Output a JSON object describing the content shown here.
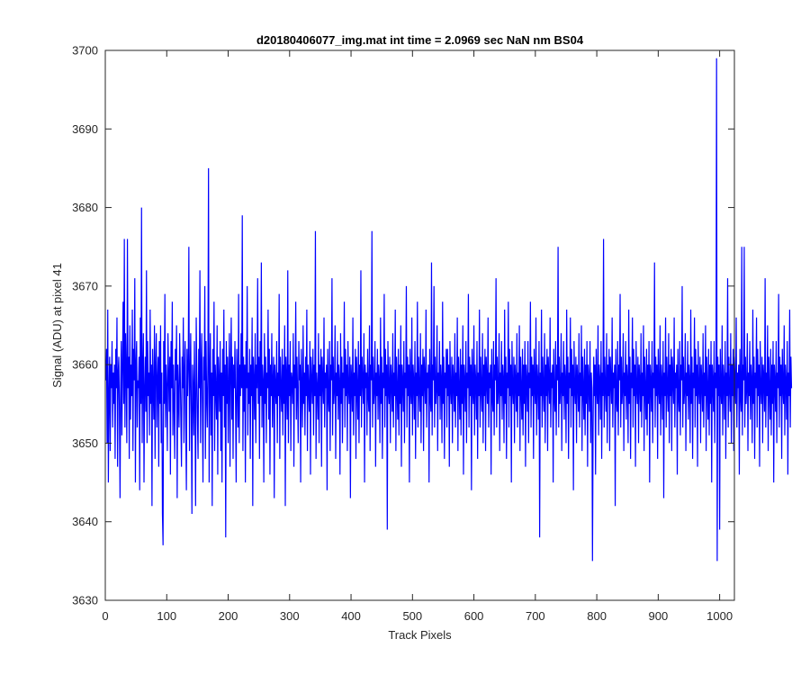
{
  "chart_data": {
    "type": "line",
    "title": "d20180406077_img.mat int time = 2.0969 sec  NaN nm BS04",
    "xlabel": "Track Pixels",
    "ylabel": "Signal (ADU) at pixel 41",
    "xlim": [
      0,
      1024
    ],
    "ylim": [
      3630,
      3700
    ],
    "xticks": [
      0,
      100,
      200,
      300,
      400,
      500,
      600,
      700,
      800,
      900,
      1000
    ],
    "yticks": [
      3630,
      3640,
      3650,
      3660,
      3670,
      3680,
      3690,
      3700
    ],
    "grid": false,
    "legend": "none",
    "series": [
      {
        "color": "#0000ff",
        "x_start": 1,
        "x_step": 1,
        "y": [
          3658,
          3662,
          3650,
          3667,
          3645,
          3656,
          3661,
          3649,
          3660,
          3657,
          3663,
          3652,
          3659,
          3655,
          3660,
          3648,
          3662,
          3657,
          3666,
          3647,
          3659,
          3661,
          3654,
          3643,
          3657,
          3663,
          3651,
          3660,
          3668,
          3655,
          3676,
          3652,
          3664,
          3659,
          3650,
          3676,
          3657,
          3661,
          3648,
          3665,
          3653,
          3660,
          3656,
          3667,
          3649,
          3662,
          3658,
          3671,
          3645,
          3660,
          3663,
          3652,
          3658,
          3657,
          3661,
          3644,
          3666,
          3655,
          3680,
          3650,
          3659,
          3664,
          3645,
          3657,
          3661,
          3654,
          3672,
          3650,
          3663,
          3656,
          3659,
          3651,
          3667,
          3655,
          3660,
          3642,
          3662,
          3657,
          3653,
          3665,
          3648,
          3660,
          3664,
          3652,
          3658,
          3661,
          3647,
          3663,
          3655,
          3665,
          3650,
          3659,
          3641,
          3637,
          3663,
          3655,
          3669,
          3652,
          3660,
          3657,
          3649,
          3664,
          3659,
          3654,
          3661,
          3646,
          3663,
          3657,
          3668,
          3651,
          3660,
          3655,
          3648,
          3662,
          3658,
          3665,
          3643,
          3660,
          3656,
          3652,
          3664,
          3659,
          3653,
          3647,
          3661,
          3657,
          3666,
          3650,
          3659,
          3663,
          3652,
          3644,
          3662,
          3656,
          3660,
          3675,
          3649,
          3658,
          3664,
          3654,
          3641,
          3660,
          3657,
          3651,
          3663,
          3655,
          3642,
          3666,
          3659,
          3653,
          3648,
          3662,
          3657,
          3672,
          3650,
          3659,
          3664,
          3655,
          3645,
          3661,
          3658,
          3670,
          3648,
          3663,
          3656,
          3652,
          3660,
          3685,
          3645,
          3658,
          3664,
          3651,
          3659,
          3642,
          3662,
          3656,
          3668,
          3649,
          3660,
          3657,
          3653,
          3665,
          3646,
          3661,
          3658,
          3654,
          3663,
          3649,
          3659,
          3645,
          3662,
          3656,
          3667,
          3652,
          3660,
          3638,
          3663,
          3655,
          3661,
          3650,
          3658,
          3664,
          3647,
          3659,
          3666,
          3653,
          3661,
          3648,
          3660,
          3657,
          3663,
          3655,
          3645,
          3662,
          3658,
          3652,
          3669,
          3650,
          3660,
          3656,
          3664,
          3657,
          3679,
          3649,
          3661,
          3654,
          3660,
          3645,
          3663,
          3657,
          3670,
          3651,
          3659,
          3655,
          3662,
          3648,
          3660,
          3656,
          3666,
          3642,
          3661,
          3658,
          3653,
          3664,
          3650,
          3660,
          3657,
          3671,
          3655,
          3661,
          3648,
          3663,
          3656,
          3673,
          3652,
          3660,
          3658,
          3645,
          3664,
          3655,
          3661,
          3650,
          3659,
          3657,
          3667,
          3653,
          3662,
          3646,
          3660,
          3656,
          3664,
          3652,
          3658,
          3661,
          3643,
          3660,
          3657,
          3655,
          3663,
          3650,
          3659,
          3656,
          3669,
          3648,
          3661,
          3657,
          3654,
          3662,
          3651,
          3660,
          3655,
          3665,
          3642,
          3661,
          3658,
          3653,
          3672,
          3650,
          3660,
          3656,
          3663,
          3649,
          3659,
          3658,
          3655,
          3664,
          3647,
          3660,
          3657,
          3668,
          3653,
          3661,
          3656,
          3650,
          3663,
          3658,
          3660,
          3645,
          3662,
          3657,
          3652,
          3665,
          3655,
          3659,
          3651,
          3661,
          3656,
          3667,
          3649,
          3660,
          3657,
          3654,
          3663,
          3646,
          3661,
          3658,
          3655,
          3662,
          3651,
          3660,
          3656,
          3677,
          3648,
          3659,
          3657,
          3653,
          3664,
          3650,
          3660,
          3656,
          3662,
          3647,
          3661,
          3658,
          3655,
          3666,
          3652,
          3659,
          3657,
          3660,
          3644,
          3662,
          3656,
          3654,
          3663,
          3649,
          3660,
          3658,
          3671,
          3651,
          3661,
          3655,
          3657,
          3665,
          3648,
          3659,
          3656,
          3663,
          3653,
          3660,
          3658,
          3646,
          3664,
          3655,
          3661,
          3650,
          3659,
          3657,
          3668,
          3652,
          3662,
          3656,
          3660,
          3649,
          3663,
          3657,
          3655,
          3661,
          3643,
          3660,
          3658,
          3654,
          3666,
          3651,
          3659,
          3656,
          3662,
          3648,
          3661,
          3657,
          3653,
          3663,
          3650,
          3660,
          3656,
          3672,
          3652,
          3661,
          3658,
          3655,
          3664,
          3645,
          3660,
          3657,
          3659,
          3651,
          3662,
          3656,
          3654,
          3665,
          3649,
          3660,
          3658,
          3677,
          3652,
          3661,
          3655,
          3657,
          3663,
          3647,
          3659,
          3656,
          3662,
          3653,
          3660,
          3658,
          3650,
          3666,
          3655,
          3661,
          3648,
          3659,
          3657,
          3669,
          3652,
          3662,
          3656,
          3660,
          3639,
          3663,
          3657,
          3655,
          3661,
          3650,
          3660,
          3658,
          3654,
          3664,
          3652,
          3659,
          3656,
          3667,
          3649,
          3661,
          3657,
          3653,
          3662,
          3651,
          3660,
          3655,
          3665,
          3647,
          3660,
          3658,
          3654,
          3663,
          3650,
          3659,
          3657,
          3670,
          3652,
          3661,
          3656,
          3660,
          3645,
          3662,
          3657,
          3655,
          3666,
          3651,
          3660,
          3658,
          3653,
          3663,
          3648,
          3659,
          3656,
          3668,
          3652,
          3661,
          3657,
          3654,
          3664,
          3650,
          3660,
          3656,
          3662,
          3649,
          3661,
          3658,
          3655,
          3667,
          3652,
          3659,
          3657,
          3660,
          3645,
          3662,
          3656,
          3654,
          3673,
          3651,
          3660,
          3658,
          3670,
          3652,
          3661,
          3655,
          3657,
          3665,
          3649,
          3659,
          3656,
          3663,
          3653,
          3660,
          3658,
          3650,
          3668,
          3655,
          3661,
          3648,
          3659,
          3657,
          3662,
          3652,
          3662,
          3656,
          3660,
          3647,
          3663,
          3657,
          3655,
          3661,
          3650,
          3660,
          3658,
          3654,
          3664,
          3652,
          3659,
          3656,
          3666,
          3649,
          3661,
          3657,
          3653,
          3662,
          3651,
          3660,
          3655,
          3665,
          3646,
          3660,
          3658,
          3654,
          3663,
          3650,
          3659,
          3657,
          3669,
          3652,
          3661,
          3656,
          3660,
          3644,
          3662,
          3657,
          3655,
          3665,
          3651,
          3660,
          3658,
          3653,
          3663,
          3648,
          3659,
          3656,
          3667,
          3652,
          3661,
          3657,
          3654,
          3664,
          3650,
          3660,
          3656,
          3662,
          3649,
          3661,
          3658,
          3655,
          3666,
          3652,
          3659,
          3657,
          3660,
          3646,
          3662,
          3656,
          3654,
          3663,
          3651,
          3660,
          3658,
          3671,
          3652,
          3661,
          3655,
          3657,
          3664,
          3649,
          3659,
          3656,
          3663,
          3653,
          3660,
          3658,
          3650,
          3667,
          3655,
          3661,
          3648,
          3659,
          3657,
          3668,
          3652,
          3662,
          3656,
          3660,
          3645,
          3663,
          3657,
          3655,
          3661,
          3650,
          3660,
          3658,
          3654,
          3664,
          3652,
          3659,
          3656,
          3665,
          3649,
          3661,
          3657,
          3653,
          3662,
          3651,
          3660,
          3655,
          3663,
          3647,
          3660,
          3658,
          3654,
          3663,
          3650,
          3659,
          3657,
          3668,
          3652,
          3661,
          3656,
          3660,
          3648,
          3662,
          3657,
          3655,
          3666,
          3651,
          3660,
          3658,
          3653,
          3663,
          3638,
          3659,
          3656,
          3667,
          3652,
          3661,
          3657,
          3654,
          3664,
          3650,
          3660,
          3656,
          3662,
          3649,
          3661,
          3658,
          3655,
          3666,
          3652,
          3659,
          3657,
          3660,
          3645,
          3662,
          3656,
          3654,
          3663,
          3651,
          3660,
          3658,
          3675,
          3652,
          3661,
          3655,
          3657,
          3664,
          3649,
          3659,
          3656,
          3663,
          3653,
          3660,
          3658,
          3650,
          3667,
          3655,
          3661,
          3648,
          3659,
          3657,
          3666,
          3652,
          3662,
          3656,
          3660,
          3644,
          3663,
          3657,
          3655,
          3661,
          3650,
          3660,
          3658,
          3654,
          3664,
          3652,
          3659,
          3656,
          3665,
          3649,
          3661,
          3657,
          3653,
          3662,
          3651,
          3660,
          3655,
          3663,
          3647,
          3660,
          3658,
          3654,
          3663,
          3650,
          3659,
          3657,
          3635,
          3652,
          3661,
          3656,
          3660,
          3646,
          3662,
          3657,
          3655,
          3665,
          3651,
          3660,
          3658,
          3653,
          3663,
          3648,
          3659,
          3656,
          3676,
          3652,
          3661,
          3657,
          3654,
          3664,
          3650,
          3660,
          3656,
          3662,
          3649,
          3661,
          3658,
          3655,
          3666,
          3652,
          3659,
          3657,
          3660,
          3642,
          3662,
          3656,
          3654,
          3663,
          3651,
          3660,
          3658,
          3669,
          3652,
          3661,
          3655,
          3657,
          3664,
          3649,
          3659,
          3656,
          3663,
          3653,
          3660,
          3658,
          3650,
          3667,
          3655,
          3661,
          3648,
          3659,
          3657,
          3666,
          3652,
          3662,
          3656,
          3660,
          3647,
          3663,
          3657,
          3655,
          3661,
          3650,
          3660,
          3658,
          3654,
          3664,
          3652,
          3659,
          3656,
          3665,
          3649,
          3661,
          3657,
          3653,
          3662,
          3651,
          3660,
          3655,
          3663,
          3645,
          3660,
          3658,
          3654,
          3663,
          3650,
          3659,
          3657,
          3673,
          3652,
          3661,
          3656,
          3660,
          3648,
          3662,
          3657,
          3655,
          3665,
          3651,
          3660,
          3658,
          3653,
          3663,
          3643,
          3659,
          3656,
          3666,
          3652,
          3661,
          3657,
          3654,
          3664,
          3650,
          3660,
          3656,
          3662,
          3649,
          3661,
          3658,
          3655,
          3666,
          3652,
          3659,
          3657,
          3660,
          3646,
          3662,
          3656,
          3654,
          3663,
          3651,
          3660,
          3658,
          3670,
          3652,
          3661,
          3655,
          3657,
          3664,
          3649,
          3659,
          3656,
          3663,
          3653,
          3660,
          3658,
          3650,
          3667,
          3655,
          3661,
          3648,
          3659,
          3657,
          3666,
          3652,
          3662,
          3656,
          3660,
          3647,
          3663,
          3657,
          3655,
          3661,
          3650,
          3660,
          3658,
          3654,
          3664,
          3652,
          3659,
          3656,
          3665,
          3649,
          3661,
          3657,
          3653,
          3662,
          3651,
          3660,
          3655,
          3663,
          3645,
          3660,
          3658,
          3654,
          3663,
          3650,
          3659,
          3657,
          3699,
          3635,
          3661,
          3656,
          3660,
          3639,
          3662,
          3657,
          3655,
          3665,
          3651,
          3660,
          3658,
          3653,
          3663,
          3648,
          3659,
          3656,
          3671,
          3652,
          3661,
          3657,
          3654,
          3664,
          3650,
          3660,
          3656,
          3662,
          3649,
          3661,
          3658,
          3655,
          3666,
          3652,
          3659,
          3657,
          3660,
          3646,
          3662,
          3656,
          3654,
          3675,
          3651,
          3660,
          3658,
          3675,
          3652,
          3661,
          3655,
          3657,
          3664,
          3649,
          3659,
          3656,
          3663,
          3653,
          3660,
          3658,
          3650,
          3667,
          3655,
          3661,
          3648,
          3659,
          3657,
          3666,
          3652,
          3662,
          3656,
          3660,
          3647,
          3663,
          3657,
          3655,
          3661,
          3650,
          3660,
          3658,
          3654,
          3671,
          3652,
          3659,
          3656,
          3665,
          3649,
          3661,
          3657,
          3653,
          3662,
          3651,
          3660,
          3655,
          3663,
          3645,
          3660,
          3658,
          3654,
          3663,
          3650,
          3659,
          3657,
          3669,
          3652,
          3661,
          3656,
          3660,
          3648,
          3662,
          3657,
          3655,
          3665,
          3651,
          3660,
          3658,
          3653,
          3663,
          3646,
          3659,
          3656,
          3667,
          3652,
          3661,
          3657
        ]
      }
    ]
  }
}
